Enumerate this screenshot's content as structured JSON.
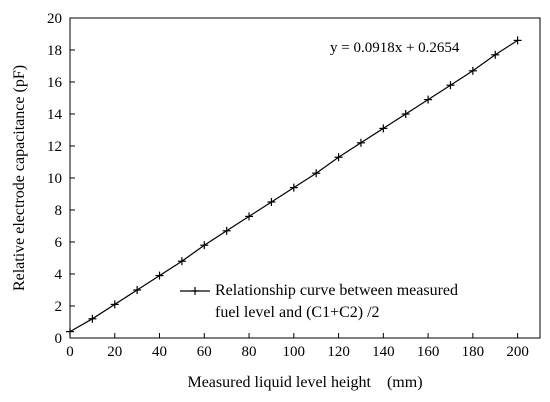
{
  "chart_data": {
    "type": "line",
    "title": "",
    "xlabel": "Measured liquid level height    (mm)",
    "ylabel": "Relative electrode capacitance (pF)",
    "xlim": [
      0,
      210
    ],
    "ylim": [
      0,
      20
    ],
    "x_ticks": [
      0,
      20,
      40,
      60,
      80,
      100,
      120,
      140,
      160,
      180,
      200
    ],
    "y_ticks": [
      0,
      2,
      4,
      6,
      8,
      10,
      12,
      14,
      16,
      18,
      20
    ],
    "grid": false,
    "legend_position": "bottom-right",
    "series": [
      {
        "name": "Relationship curve between measured fuel level and (C1+C2) /2",
        "marker": "plus",
        "color": "#000000",
        "x": [
          0,
          10,
          20,
          30,
          40,
          50,
          60,
          70,
          80,
          90,
          100,
          110,
          120,
          130,
          140,
          150,
          160,
          170,
          180,
          190,
          200
        ],
        "y": [
          0.4,
          1.2,
          2.1,
          3.0,
          3.9,
          4.8,
          5.8,
          6.7,
          7.6,
          8.5,
          9.4,
          10.3,
          11.3,
          12.2,
          13.1,
          14.0,
          14.9,
          15.8,
          16.7,
          17.7,
          18.6
        ]
      }
    ],
    "annotations": [
      {
        "text": "y = 0.0918x + 0.2654"
      }
    ],
    "legend": {
      "line1": "Relationship curve between measured",
      "line2": "fuel level and (C1+C2) /2"
    }
  }
}
